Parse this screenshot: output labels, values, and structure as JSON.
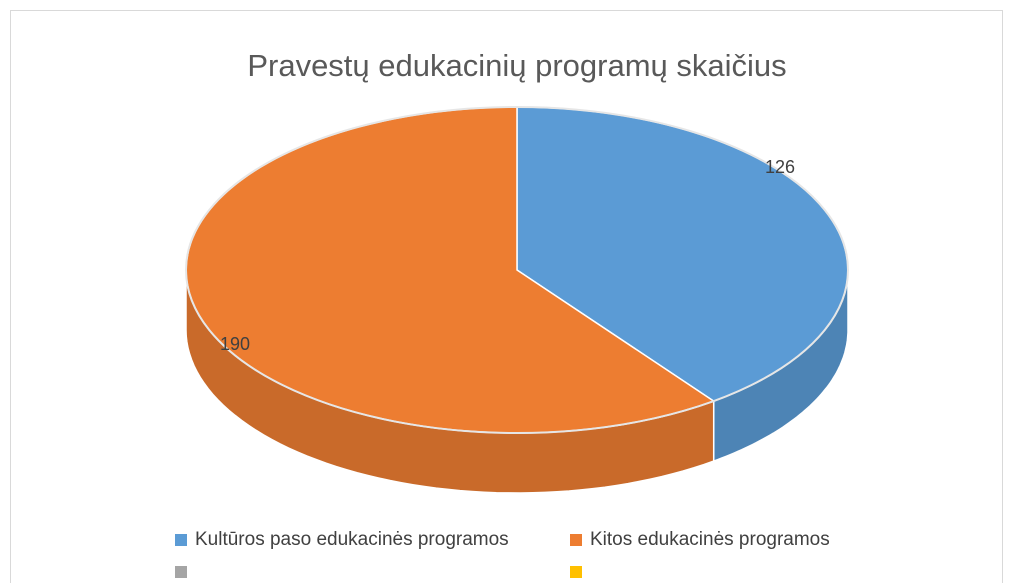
{
  "chart_data": {
    "type": "pie3d",
    "title": "Pravestų edukacinių programų skaičius",
    "categories": [
      "Kultūros paso edukacinės programos",
      "Kitos edukacinės programos",
      null,
      null
    ],
    "values": [
      126,
      190,
      null,
      null
    ],
    "colors": [
      "#5b9bd5",
      "#ed7d31",
      "#a5a5a5",
      "#ffc000"
    ],
    "legend": "bottom"
  }
}
